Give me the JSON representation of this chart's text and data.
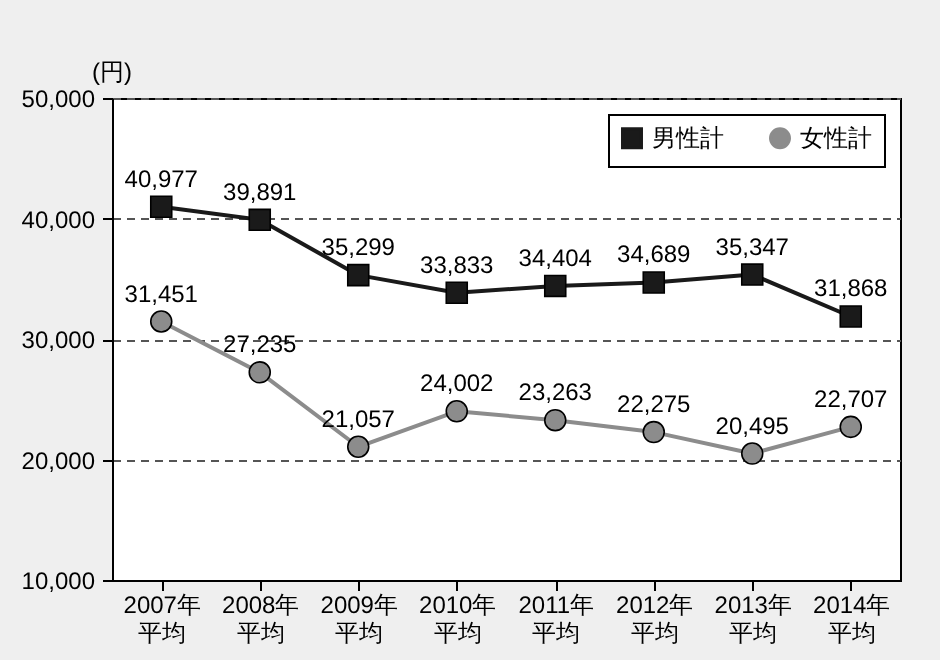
{
  "chart_data": {
    "type": "line",
    "ylabel": "(円)",
    "categories": [
      "2007年平均",
      "2008年平均",
      "2009年平均",
      "2010年平均",
      "2011年平均",
      "2012年平均",
      "2013年平均",
      "2014年平均"
    ],
    "series": [
      {
        "name": "男性計",
        "color": "#1a1a1a",
        "marker": "square",
        "values": [
          40977,
          39891,
          35299,
          33833,
          34404,
          34689,
          35347,
          31868
        ],
        "value_labels": [
          "40,977",
          "39,891",
          "35,299",
          "33,833",
          "34,404",
          "34,689",
          "35,347",
          "31,868"
        ]
      },
      {
        "name": "女性計",
        "color": "#8c8c8c",
        "marker": "circle",
        "values": [
          31451,
          27235,
          21057,
          24002,
          23263,
          22275,
          20495,
          22707
        ],
        "value_labels": [
          "31,451",
          "27,235",
          "21,057",
          "24,002",
          "23,263",
          "22,275",
          "20,495",
          "22,707"
        ]
      }
    ],
    "ylim": [
      10000,
      50000
    ],
    "yticks": [
      {
        "value": 10000,
        "label": "10,000"
      },
      {
        "value": 20000,
        "label": "20,000"
      },
      {
        "value": 30000,
        "label": "30,000"
      },
      {
        "value": 40000,
        "label": "40,000"
      },
      {
        "value": 50000,
        "label": "50,000"
      }
    ],
    "grid": "y",
    "line_style": "solid",
    "legend": "top right"
  }
}
